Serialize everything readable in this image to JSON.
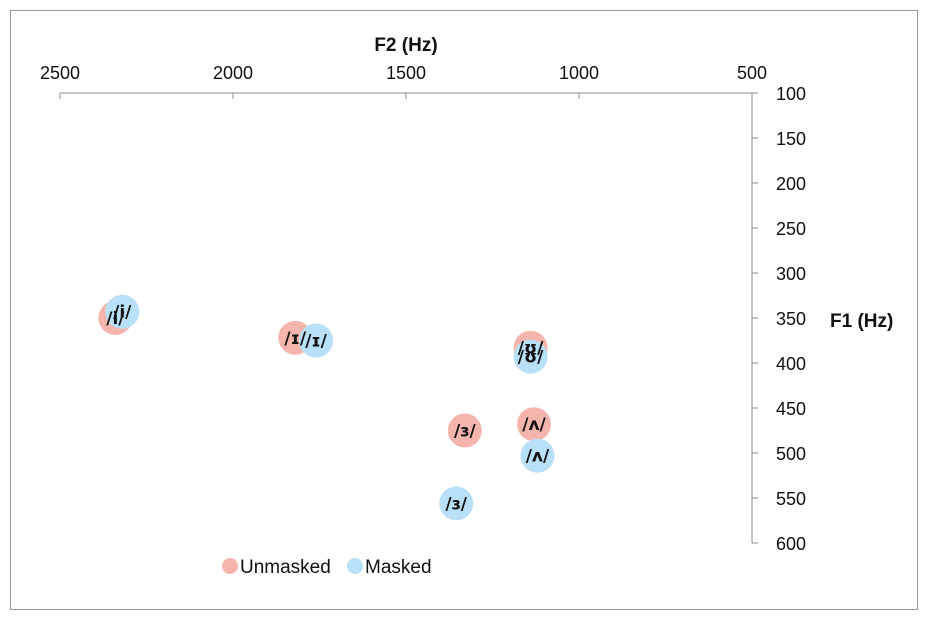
{
  "chart_data": {
    "type": "scatter",
    "xlabel": "F2 (Hz)",
    "ylabel": "F1 (Hz)",
    "x_reversed": true,
    "y_reversed": true,
    "xlim": [
      500,
      2500
    ],
    "ylim": [
      100,
      600
    ],
    "x_ticks": [
      "2500",
      "2000",
      "1500",
      "1000",
      "500"
    ],
    "y_ticks": [
      "100",
      "150",
      "200",
      "250",
      "300",
      "350",
      "400",
      "450",
      "500",
      "550",
      "600"
    ],
    "legend_position": "bottom-left",
    "grid": false,
    "series": [
      {
        "name": "Unmasked",
        "color": "#f5b5ad",
        "points": [
          {
            "label": "/i/",
            "x": 2340,
            "y": 350
          },
          {
            "label": "/ɪ/",
            "x": 1820,
            "y": 372
          },
          {
            "label": "/ʊ/",
            "x": 1140,
            "y": 383
          },
          {
            "label": "/ʌ/",
            "x": 1130,
            "y": 468
          },
          {
            "label": "/ɜ/",
            "x": 1330,
            "y": 475
          }
        ]
      },
      {
        "name": "Masked",
        "color": "#b8e0f8",
        "points": [
          {
            "label": "/i/",
            "x": 2320,
            "y": 343
          },
          {
            "label": "/ɪ/",
            "x": 1760,
            "y": 375
          },
          {
            "label": "/ʊ/",
            "x": 1140,
            "y": 393
          },
          {
            "label": "/ʌ/",
            "x": 1120,
            "y": 503
          },
          {
            "label": "/ɜ/",
            "x": 1355,
            "y": 556
          }
        ]
      }
    ]
  }
}
